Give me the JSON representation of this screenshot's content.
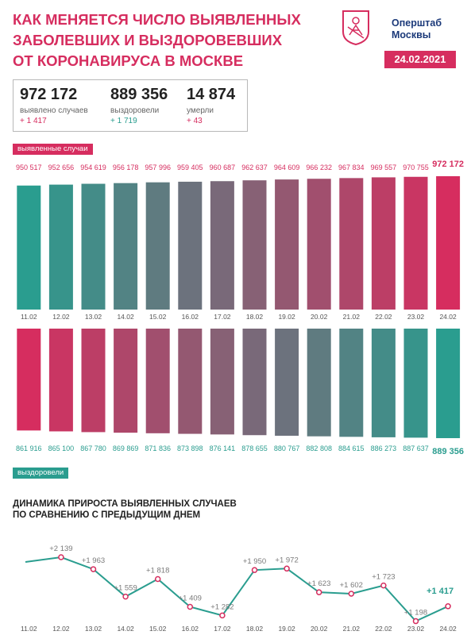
{
  "header": {
    "title_lines": [
      "КАК МЕНЯЕТСЯ ЧИСЛО ВЫЯВЛЕННЫХ",
      "ЗАБОЛЕВШИХ И ВЫЗДОРОВЕВШИХ",
      "ОТ КОРОНАВИРУСА В МОСКВЕ"
    ],
    "brand_lines": [
      "Оперштаб",
      "Москвы"
    ],
    "date": "24.02.2021"
  },
  "stats": [
    {
      "value": "972 172",
      "label": "выявлено случаев",
      "change": "+ 1 417",
      "change_color": "#d62d5f"
    },
    {
      "value": "889 356",
      "label": "выздоровели",
      "change": "+ 1 719",
      "change_color": "#2a9d8f"
    },
    {
      "value": "14 874",
      "label": "умерли",
      "change": "+ 43",
      "change_color": "#d62d5f"
    }
  ],
  "tags": {
    "detected": "выявленные случаи",
    "recovered": "выздоровели"
  },
  "dynamics_title_lines": [
    "ДИНАМИКА ПРИРОСТА ВЫЯВЛЕННЫХ СЛУЧАЕВ",
    "ПО СРАВНЕНИЮ С ПРЕДЫДУЩИМ ДНЕМ"
  ],
  "colors": {
    "accent": "#d62d5f",
    "teal": "#2a9d8f",
    "navy": "#1c3a7a"
  },
  "chart_data": [
    {
      "type": "bar",
      "categories": [
        "11.02",
        "12.02",
        "13.02",
        "14.02",
        "15.02",
        "16.02",
        "17.02",
        "18.02",
        "19.02",
        "20.02",
        "21.02",
        "22.02",
        "23.02",
        "24.02"
      ],
      "value_labels": [
        "950 517",
        "952 656",
        "954 619",
        "956 178",
        "957 996",
        "959 405",
        "960 687",
        "962 637",
        "964 609",
        "966 232",
        "967 834",
        "969 557",
        "970 755",
        "972 172"
      ],
      "values": [
        950517,
        952656,
        954619,
        956178,
        957996,
        959405,
        960687,
        962637,
        964609,
        966232,
        967834,
        969557,
        970755,
        972172
      ]
    },
    {
      "type": "bar",
      "categories": [
        "11.02",
        "12.02",
        "13.02",
        "14.02",
        "15.02",
        "16.02",
        "17.02",
        "18.02",
        "19.02",
        "20.02",
        "21.02",
        "22.02",
        "23.02",
        "24.02"
      ],
      "value_labels": [
        "861 916",
        "865 100",
        "867 780",
        "869 869",
        "871 836",
        "873 898",
        "876 141",
        "878 655",
        "880 767",
        "882 808",
        "884 615",
        "886 273",
        "887 637",
        "889 356"
      ],
      "values": [
        861916,
        865100,
        867780,
        869869,
        871836,
        873898,
        876141,
        878655,
        880767,
        882808,
        884615,
        886273,
        887637,
        889356
      ]
    },
    {
      "type": "line",
      "categories": [
        "11.02",
        "12.02",
        "13.02",
        "14.02",
        "15.02",
        "16.02",
        "17.02",
        "18.02",
        "19.02",
        "20.02",
        "21.02",
        "22.02",
        "23.02",
        "24.02"
      ],
      "value_labels": [
        "",
        "+2 139",
        "+1 963",
        "+1 559",
        "+1 818",
        "+1 409",
        "+1 282",
        "+1 950",
        "+1 972",
        "+1 623",
        "+1 602",
        "+1 723",
        "+1 198",
        "+1 417"
      ],
      "values": [
        null,
        2139,
        1963,
        1559,
        1818,
        1409,
        1282,
        1950,
        1972,
        1623,
        1602,
        1723,
        1198,
        1417
      ]
    }
  ]
}
